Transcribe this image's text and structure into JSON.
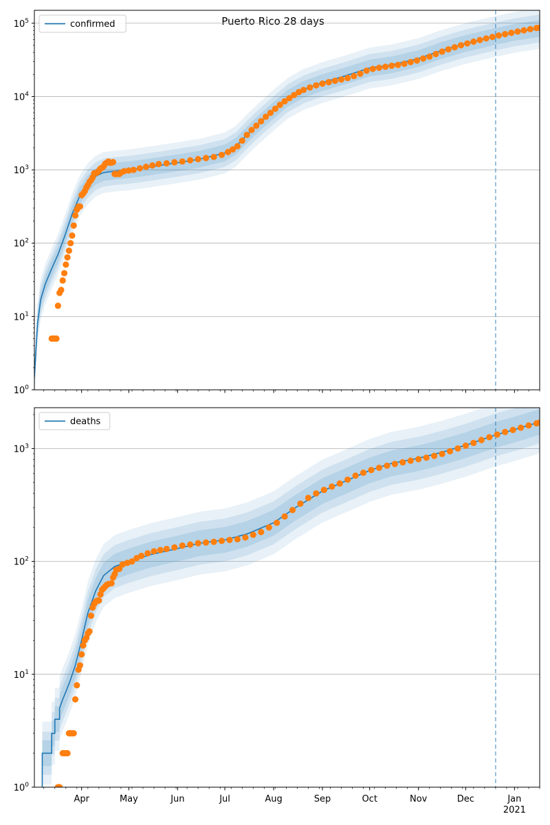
{
  "figure_title": "Puerto Rico 28 days",
  "colors": {
    "model_line": "#1f77b4",
    "band": "#1f77b4",
    "observed": "#ff7f0e",
    "forecast_line": "#1f77b4",
    "grid": "#b0b0b0"
  },
  "chart_data": [
    {
      "type": "line",
      "panel": "top",
      "legend": [
        "confirmed"
      ],
      "legend_position": "upper-left",
      "yscale": "log",
      "ylim": [
        1,
        150000
      ],
      "xlim": [
        "2020-03-02",
        "2021-01-17"
      ],
      "y_tick_labels": [
        "10^0",
        "10^1",
        "10^2",
        "10^3",
        "10^4",
        "10^5"
      ],
      "y_tick_values": [
        1,
        10,
        100,
        1000,
        10000,
        100000
      ],
      "grid": "y-major",
      "forecast_start": "2020-12-20",
      "model": {
        "name": "confirmed",
        "points": [
          [
            "2020-03-02",
            1.5
          ],
          [
            "2020-03-04",
            8
          ],
          [
            "2020-03-06",
            17
          ],
          [
            "2020-03-09",
            28
          ],
          [
            "2020-03-13",
            45
          ],
          [
            "2020-03-17",
            70
          ],
          [
            "2020-03-21",
            120
          ],
          [
            "2020-03-26",
            250
          ],
          [
            "2020-03-31",
            450
          ],
          [
            "2020-04-05",
            650
          ],
          [
            "2020-04-10",
            820
          ],
          [
            "2020-04-15",
            920
          ],
          [
            "2020-04-22",
            960
          ],
          [
            "2020-05-01",
            1000
          ],
          [
            "2020-05-15",
            1100
          ],
          [
            "2020-06-01",
            1250
          ],
          [
            "2020-06-15",
            1400
          ],
          [
            "2020-07-01",
            1700
          ],
          [
            "2020-07-08",
            2100
          ],
          [
            "2020-07-15",
            3000
          ],
          [
            "2020-07-22",
            4200
          ],
          [
            "2020-08-01",
            6500
          ],
          [
            "2020-08-10",
            9500
          ],
          [
            "2020-08-20",
            12500
          ],
          [
            "2020-09-01",
            15500
          ],
          [
            "2020-09-15",
            19000
          ],
          [
            "2020-10-01",
            24500
          ],
          [
            "2020-10-15",
            27000
          ],
          [
            "2020-11-01",
            33000
          ],
          [
            "2020-11-15",
            42000
          ],
          [
            "2020-12-01",
            53000
          ],
          [
            "2020-12-20",
            66000
          ],
          [
            "2021-01-01",
            75000
          ],
          [
            "2021-01-17",
            85000
          ]
        ]
      },
      "observed_points": [
        [
          "2020-03-13",
          5
        ],
        [
          "2020-03-14",
          5
        ],
        [
          "2020-03-15",
          5
        ],
        [
          "2020-03-16",
          5
        ],
        [
          "2020-03-17",
          14
        ],
        [
          "2020-03-18",
          21
        ],
        [
          "2020-03-19",
          23
        ],
        [
          "2020-03-20",
          31
        ],
        [
          "2020-03-21",
          39
        ],
        [
          "2020-03-22",
          51
        ],
        [
          "2020-03-23",
          64
        ],
        [
          "2020-03-24",
          79
        ],
        [
          "2020-03-25",
          100
        ],
        [
          "2020-03-26",
          127
        ],
        [
          "2020-03-27",
          174
        ],
        [
          "2020-03-28",
          239
        ],
        [
          "2020-03-29",
          286
        ],
        [
          "2020-03-30",
          316
        ],
        [
          "2020-03-31",
          316
        ],
        [
          "2020-04-01",
          452
        ],
        [
          "2020-04-02",
          475
        ],
        [
          "2020-04-03",
          513
        ],
        [
          "2020-04-04",
          573
        ],
        [
          "2020-04-05",
          620
        ],
        [
          "2020-04-06",
          683
        ],
        [
          "2020-04-07",
          725
        ],
        [
          "2020-04-08",
          788
        ],
        [
          "2020-04-09",
          897
        ],
        [
          "2020-04-10",
          903
        ],
        [
          "2020-04-11",
          923
        ],
        [
          "2020-04-12",
          974
        ],
        [
          "2020-04-13",
          1043
        ],
        [
          "2020-04-14",
          1068
        ],
        [
          "2020-04-15",
          1118
        ],
        [
          "2020-04-16",
          1213
        ],
        [
          "2020-04-17",
          1252
        ],
        [
          "2020-04-18",
          1298
        ],
        [
          "2020-04-19",
          1252
        ],
        [
          "2020-04-20",
          1252
        ],
        [
          "2020-04-21",
          1276
        ],
        [
          "2020-04-22",
          880
        ],
        [
          "2020-04-23",
          880
        ],
        [
          "2020-04-24",
          880
        ],
        [
          "2020-04-25",
          880
        ],
        [
          "2020-04-26",
          915
        ],
        [
          "2020-04-28",
          960
        ],
        [
          "2020-05-01",
          980
        ],
        [
          "2020-05-04",
          1000
        ],
        [
          "2020-05-08",
          1050
        ],
        [
          "2020-05-12",
          1100
        ],
        [
          "2020-05-16",
          1150
        ],
        [
          "2020-05-20",
          1200
        ],
        [
          "2020-05-25",
          1230
        ],
        [
          "2020-05-30",
          1270
        ],
        [
          "2020-06-04",
          1300
        ],
        [
          "2020-06-09",
          1350
        ],
        [
          "2020-06-14",
          1400
        ],
        [
          "2020-06-19",
          1450
        ],
        [
          "2020-06-24",
          1500
        ],
        [
          "2020-06-29",
          1600
        ],
        [
          "2020-07-03",
          1750
        ],
        [
          "2020-07-06",
          1900
        ],
        [
          "2020-07-09",
          2100
        ],
        [
          "2020-07-12",
          2500
        ],
        [
          "2020-07-15",
          3000
        ],
        [
          "2020-07-18",
          3500
        ],
        [
          "2020-07-21",
          4000
        ],
        [
          "2020-07-24",
          4600
        ],
        [
          "2020-07-27",
          5300
        ],
        [
          "2020-07-30",
          6000
        ],
        [
          "2020-08-02",
          6800
        ],
        [
          "2020-08-05",
          7700
        ],
        [
          "2020-08-08",
          8600
        ],
        [
          "2020-08-11",
          9500
        ],
        [
          "2020-08-14",
          10500
        ],
        [
          "2020-08-17",
          11500
        ],
        [
          "2020-08-20",
          12300
        ],
        [
          "2020-08-24",
          13300
        ],
        [
          "2020-08-28",
          14200
        ],
        [
          "2020-09-01",
          15000
        ],
        [
          "2020-09-05",
          15700
        ],
        [
          "2020-09-09",
          16400
        ],
        [
          "2020-09-13",
          17100
        ],
        [
          "2020-09-17",
          17900
        ],
        [
          "2020-09-21",
          19000
        ],
        [
          "2020-09-25",
          20500
        ],
        [
          "2020-09-29",
          22500
        ],
        [
          "2020-10-03",
          23800
        ],
        [
          "2020-10-07",
          24700
        ],
        [
          "2020-10-11",
          25500
        ],
        [
          "2020-10-15",
          26300
        ],
        [
          "2020-10-19",
          27000
        ],
        [
          "2020-10-23",
          28000
        ],
        [
          "2020-10-27",
          29500
        ],
        [
          "2020-10-31",
          31000
        ],
        [
          "2020-11-04",
          33000
        ],
        [
          "2020-11-08",
          35000
        ],
        [
          "2020-11-12",
          38000
        ],
        [
          "2020-11-16",
          41000
        ],
        [
          "2020-11-20",
          44000
        ],
        [
          "2020-11-24",
          47000
        ],
        [
          "2020-11-28",
          50000
        ],
        [
          "2020-12-02",
          53000
        ],
        [
          "2020-12-06",
          56000
        ],
        [
          "2020-12-10",
          59000
        ],
        [
          "2020-12-14",
          62000
        ],
        [
          "2020-12-18",
          65000
        ],
        [
          "2020-12-22",
          68000
        ],
        [
          "2020-12-26",
          71000
        ],
        [
          "2020-12-30",
          74000
        ],
        [
          "2021-01-03",
          77000
        ],
        [
          "2021-01-07",
          80000
        ],
        [
          "2021-01-11",
          83000
        ],
        [
          "2021-01-15",
          86000
        ],
        [
          "2021-01-17",
          87000
        ]
      ]
    },
    {
      "type": "line",
      "panel": "bottom",
      "legend": [
        "deaths"
      ],
      "legend_position": "upper-left",
      "yscale": "log",
      "ylim": [
        1,
        2300
      ],
      "xlim": [
        "2020-03-02",
        "2021-01-17"
      ],
      "y_tick_labels": [
        "10^0",
        "10^1",
        "10^2",
        "10^3"
      ],
      "y_tick_values": [
        1,
        10,
        100,
        1000
      ],
      "grid": "y-major",
      "forecast_start": "2020-12-20",
      "x_tick_labels": [
        "Apr",
        "May",
        "Jun",
        "Jul",
        "Aug",
        "Sep",
        "Oct",
        "Nov",
        "Dec",
        "Jan\n2021"
      ],
      "x_tick_dates": [
        "2020-04-01",
        "2020-05-01",
        "2020-06-01",
        "2020-07-01",
        "2020-08-01",
        "2020-09-01",
        "2020-10-01",
        "2020-11-01",
        "2020-12-01",
        "2021-01-01"
      ],
      "model": {
        "name": "deaths",
        "points": [
          [
            "2020-03-07",
            1
          ],
          [
            "2020-03-07",
            2
          ],
          [
            "2020-03-13",
            2
          ],
          [
            "2020-03-13",
            3
          ],
          [
            "2020-03-15",
            3
          ],
          [
            "2020-03-15",
            4
          ],
          [
            "2020-03-18",
            4
          ],
          [
            "2020-03-18",
            5
          ],
          [
            "2020-03-20",
            6
          ],
          [
            "2020-03-22",
            7
          ],
          [
            "2020-03-25",
            9
          ],
          [
            "2020-03-28",
            12
          ],
          [
            "2020-04-01",
            20
          ],
          [
            "2020-04-05",
            35
          ],
          [
            "2020-04-10",
            55
          ],
          [
            "2020-04-15",
            75
          ],
          [
            "2020-04-22",
            90
          ],
          [
            "2020-05-01",
            100
          ],
          [
            "2020-05-15",
            115
          ],
          [
            "2020-06-01",
            130
          ],
          [
            "2020-06-15",
            145
          ],
          [
            "2020-07-01",
            155
          ],
          [
            "2020-07-15",
            175
          ],
          [
            "2020-08-01",
            220
          ],
          [
            "2020-08-15",
            300
          ],
          [
            "2020-09-01",
            420
          ],
          [
            "2020-09-15",
            510
          ],
          [
            "2020-10-01",
            640
          ],
          [
            "2020-10-15",
            740
          ],
          [
            "2020-11-01",
            820
          ],
          [
            "2020-11-15",
            920
          ],
          [
            "2020-12-01",
            1070
          ],
          [
            "2020-12-20",
            1320
          ],
          [
            "2021-01-01",
            1470
          ],
          [
            "2021-01-17",
            1720
          ]
        ]
      },
      "observed_points": [
        [
          "2020-03-17",
          1
        ],
        [
          "2020-03-18",
          1
        ],
        [
          "2020-03-20",
          2
        ],
        [
          "2020-03-21",
          2
        ],
        [
          "2020-03-22",
          2
        ],
        [
          "2020-03-23",
          2
        ],
        [
          "2020-03-24",
          3
        ],
        [
          "2020-03-25",
          3
        ],
        [
          "2020-03-26",
          3
        ],
        [
          "2020-03-27",
          3
        ],
        [
          "2020-03-28",
          6
        ],
        [
          "2020-03-29",
          8
        ],
        [
          "2020-03-30",
          11
        ],
        [
          "2020-03-31",
          12
        ],
        [
          "2020-04-01",
          15
        ],
        [
          "2020-04-02",
          18
        ],
        [
          "2020-04-03",
          20
        ],
        [
          "2020-04-04",
          21
        ],
        [
          "2020-04-05",
          23
        ],
        [
          "2020-04-06",
          24
        ],
        [
          "2020-04-07",
          33
        ],
        [
          "2020-04-08",
          39
        ],
        [
          "2020-04-09",
          42
        ],
        [
          "2020-04-10",
          44
        ],
        [
          "2020-04-11",
          45
        ],
        [
          "2020-04-12",
          45
        ],
        [
          "2020-04-13",
          51
        ],
        [
          "2020-04-14",
          56
        ],
        [
          "2020-04-15",
          58
        ],
        [
          "2020-04-16",
          60
        ],
        [
          "2020-04-17",
          62
        ],
        [
          "2020-04-18",
          63
        ],
        [
          "2020-04-20",
          64
        ],
        [
          "2020-04-21",
          72
        ],
        [
          "2020-04-22",
          77
        ],
        [
          "2020-04-23",
          84
        ],
        [
          "2020-04-25",
          86
        ],
        [
          "2020-04-27",
          94
        ],
        [
          "2020-04-30",
          97
        ],
        [
          "2020-05-03",
          100
        ],
        [
          "2020-05-06",
          107
        ],
        [
          "2020-05-09",
          112
        ],
        [
          "2020-05-13",
          118
        ],
        [
          "2020-05-17",
          123
        ],
        [
          "2020-05-21",
          126
        ],
        [
          "2020-05-25",
          129
        ],
        [
          "2020-05-30",
          133
        ],
        [
          "2020-06-04",
          138
        ],
        [
          "2020-06-09",
          141
        ],
        [
          "2020-06-14",
          145
        ],
        [
          "2020-06-19",
          147
        ],
        [
          "2020-06-24",
          149
        ],
        [
          "2020-06-29",
          152
        ],
        [
          "2020-07-04",
          155
        ],
        [
          "2020-07-09",
          157
        ],
        [
          "2020-07-14",
          163
        ],
        [
          "2020-07-19",
          172
        ],
        [
          "2020-07-24",
          182
        ],
        [
          "2020-07-29",
          200
        ],
        [
          "2020-08-03",
          220
        ],
        [
          "2020-08-08",
          250
        ],
        [
          "2020-08-13",
          285
        ],
        [
          "2020-08-18",
          325
        ],
        [
          "2020-08-23",
          365
        ],
        [
          "2020-08-28",
          400
        ],
        [
          "2020-09-02",
          430
        ],
        [
          "2020-09-07",
          460
        ],
        [
          "2020-09-12",
          490
        ],
        [
          "2020-09-17",
          530
        ],
        [
          "2020-09-22",
          575
        ],
        [
          "2020-09-27",
          610
        ],
        [
          "2020-10-02",
          645
        ],
        [
          "2020-10-07",
          675
        ],
        [
          "2020-10-12",
          705
        ],
        [
          "2020-10-17",
          730
        ],
        [
          "2020-10-22",
          755
        ],
        [
          "2020-10-27",
          780
        ],
        [
          "2020-11-01",
          805
        ],
        [
          "2020-11-06",
          830
        ],
        [
          "2020-11-11",
          860
        ],
        [
          "2020-11-16",
          895
        ],
        [
          "2020-11-21",
          945
        ],
        [
          "2020-11-26",
          1000
        ],
        [
          "2020-12-01",
          1060
        ],
        [
          "2020-12-06",
          1120
        ],
        [
          "2020-12-11",
          1190
        ],
        [
          "2020-12-16",
          1260
        ],
        [
          "2020-12-21",
          1330
        ],
        [
          "2020-12-26",
          1400
        ],
        [
          "2020-12-31",
          1460
        ],
        [
          "2021-01-05",
          1530
        ],
        [
          "2021-01-10",
          1600
        ],
        [
          "2021-01-15",
          1670
        ],
        [
          "2021-01-17",
          1700
        ]
      ]
    }
  ]
}
